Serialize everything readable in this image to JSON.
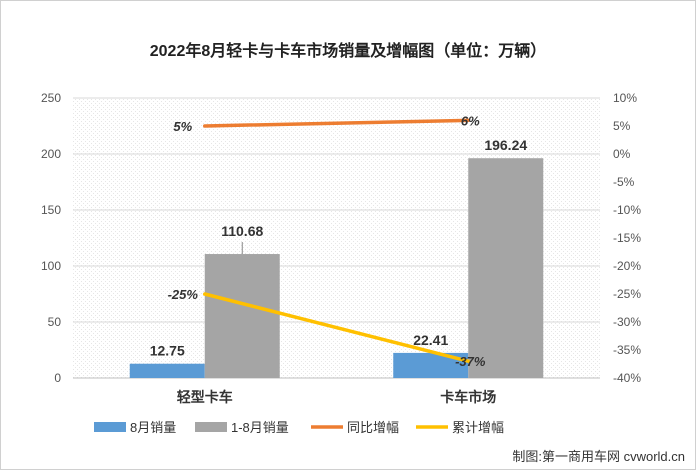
{
  "title": "2022年8月轻卡与卡车市场销量及增幅图（单位：万辆）",
  "footer": "制图:第一商用车网 cvworld.cn",
  "colors": {
    "aug_sales": "#5b9bd5",
    "ytd_sales": "#a5a5a5",
    "yoy_growth": "#ed7d31",
    "cum_growth": "#ffc000"
  },
  "chart_data": {
    "type": "bar",
    "categories": [
      "轻型卡车",
      "卡车市场"
    ],
    "series": [
      {
        "name": "8月销量",
        "kind": "bar",
        "axis": "left",
        "values": [
          12.75,
          22.41
        ],
        "labels": [
          "12.75",
          "22.41"
        ]
      },
      {
        "name": "1-8月销量",
        "kind": "bar",
        "axis": "left",
        "values": [
          110.68,
          196.24
        ],
        "labels": [
          "110.68",
          "196.24"
        ]
      },
      {
        "name": "同比增幅",
        "kind": "line",
        "axis": "right",
        "values": [
          5,
          6
        ],
        "labels": [
          "5%",
          "6%"
        ]
      },
      {
        "name": "累计增幅",
        "kind": "line",
        "axis": "right",
        "values": [
          -25,
          -37
        ],
        "labels": [
          "-25%",
          "-37%"
        ]
      }
    ],
    "left_axis": {
      "min": 0,
      "max": 250,
      "ticks": [
        "0",
        "50",
        "100",
        "150",
        "200",
        "250"
      ]
    },
    "right_axis": {
      "min": -40,
      "max": 10,
      "ticks": [
        "-40%",
        "-35%",
        "-30%",
        "-25%",
        "-20%",
        "-15%",
        "-10%",
        "-5%",
        "0%",
        "5%",
        "10%"
      ]
    },
    "grid": true,
    "legend_position": "bottom"
  }
}
